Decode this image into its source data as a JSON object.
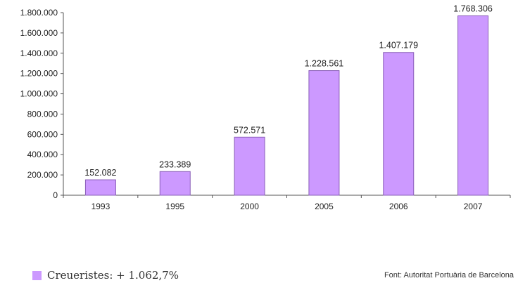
{
  "chart_data": {
    "type": "bar",
    "categories": [
      "1993",
      "1995",
      "2000",
      "2005",
      "2006",
      "2007"
    ],
    "values": [
      152082,
      233389,
      572571,
      1228561,
      1407179,
      1768306
    ],
    "value_labels": [
      "152.082",
      "233.389",
      "572.571",
      "1.228.561",
      "1.407.179",
      "1.768.306"
    ],
    "y_ticks": [
      0,
      200000,
      400000,
      600000,
      800000,
      1000000,
      1200000,
      1400000,
      1600000,
      1800000
    ],
    "y_tick_labels": [
      "0",
      "200.000",
      "400.000",
      "600.000",
      "800.000",
      "1.000.000",
      "1.200.000",
      "1.400.000",
      "1.600.000",
      "1.800.000"
    ],
    "ylim": [
      0,
      1800000
    ],
    "title": "",
    "xlabel": "",
    "ylabel": "",
    "grid": false,
    "bar_color": "#cc99ff",
    "bar_edge_color": "#8a5fb8",
    "legend": "bottom-left"
  },
  "legend": {
    "label": "Creueristes: + 1.062,7%",
    "color": "#cc99ff"
  },
  "source": "Font: Autoritat Portuària de Barcelona"
}
